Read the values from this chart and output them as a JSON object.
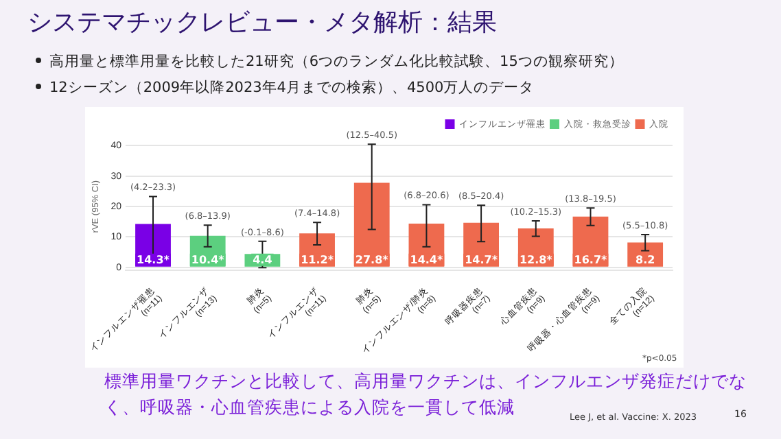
{
  "chart_data": {
    "type": "bar",
    "title": "システマチックレビュー・メタ解析：結果",
    "subtitle": "高用量と標準用量を比較した21研究（6つのランダム化比較試験、15つの観察研究）\n12シーズン（2009年以降2023年4月までの検索）、4500万人のデータ",
    "ylabel": "rVE (95% CI)",
    "categories": [
      "インフルエンザ罹患 (n=11)",
      "インフルエンザ (n=13)",
      "肺炎 (n=5)",
      "インフルエンザ (n=11)",
      "肺炎 (n=5)",
      "インフルエンザ/肺炎 (n=8)",
      "呼吸器疾患 (n=7)",
      "心血管疾患 (n=9)",
      "呼吸器・心血管疾患 (n=9)",
      "全ての入院 (n=12)"
    ],
    "series": [
      {
        "name": "インフルエンザ罹患",
        "color": "#7a00e6",
        "values": [
          14.3,
          null,
          null,
          null,
          null,
          null,
          null,
          null,
          null,
          null
        ],
        "errors": [
          [
            4.2,
            23.3
          ],
          null,
          null,
          null,
          null,
          null,
          null,
          null,
          null,
          null
        ],
        "value_labels": [
          "14.3*",
          null,
          null,
          null,
          null,
          null,
          null,
          null,
          null,
          null
        ]
      },
      {
        "name": "入院・救急受診",
        "color": "#5ccf7f",
        "values": [
          null,
          10.4,
          4.4,
          null,
          null,
          null,
          null,
          null,
          null,
          null
        ],
        "errors": [
          null,
          [
            6.8,
            13.9
          ],
          [
            -0.1,
            8.6
          ],
          null,
          null,
          null,
          null,
          null,
          null,
          null
        ],
        "value_labels": [
          null,
          "10.4*",
          "4.4",
          null,
          null,
          null,
          null,
          null,
          null,
          null
        ]
      },
      {
        "name": "入院",
        "color": "#ee6a4e",
        "values": [
          null,
          null,
          null,
          11.2,
          27.8,
          14.4,
          14.7,
          12.8,
          16.7,
          8.2
        ],
        "errors": [
          null,
          null,
          null,
          [
            7.4,
            14.8
          ],
          [
            12.5,
            40.5
          ],
          [
            6.8,
            20.6
          ],
          [
            8.5,
            20.4
          ],
          [
            10.2,
            15.3
          ],
          [
            13.8,
            19.5
          ],
          [
            5.5,
            10.8
          ]
        ],
        "value_labels": [
          null,
          null,
          null,
          "11.2*",
          "27.8*",
          "14.4*",
          "14.7*",
          "12.8*",
          "16.7*",
          "8.2"
        ]
      }
    ],
    "ylim": [
      -1,
      41
    ],
    "yticks": [
      0,
      10,
      20,
      30,
      40
    ],
    "grid": "y",
    "legend": "top right",
    "annotations": [
      {
        "text": "(4.2–23.3)",
        "y": 23.3
      },
      {
        "text": "(6.8–13.9)",
        "y": 13.9
      },
      {
        "text": "(-0.1–8.6)",
        "y": 8.6
      },
      {
        "text": "(7.4–14.8)",
        "y": 14.8
      },
      {
        "text": "(12.5–40.5)",
        "y": 40.5
      },
      {
        "text": "(6.8–20.6)",
        "y": 20.6
      },
      {
        "text": "(8.5–20.4)",
        "y": 20.4
      },
      {
        "text": "(10.2–15.3)",
        "y": 15.3
      },
      {
        "text": "(13.8–19.5)",
        "y": 19.5
      },
      {
        "text": "(5.5–10.8)",
        "y": 10.8
      },
      "*p<0.05",
      "標準用量ワクチンと比較して、高用量ワクチンは、インフルエンザ発症だけでなく、呼吸器・心血管疾患による入院を一貫して低減",
      "Lee J, et al. Vaccine: X. 2023",
      "16"
    ]
  }
}
